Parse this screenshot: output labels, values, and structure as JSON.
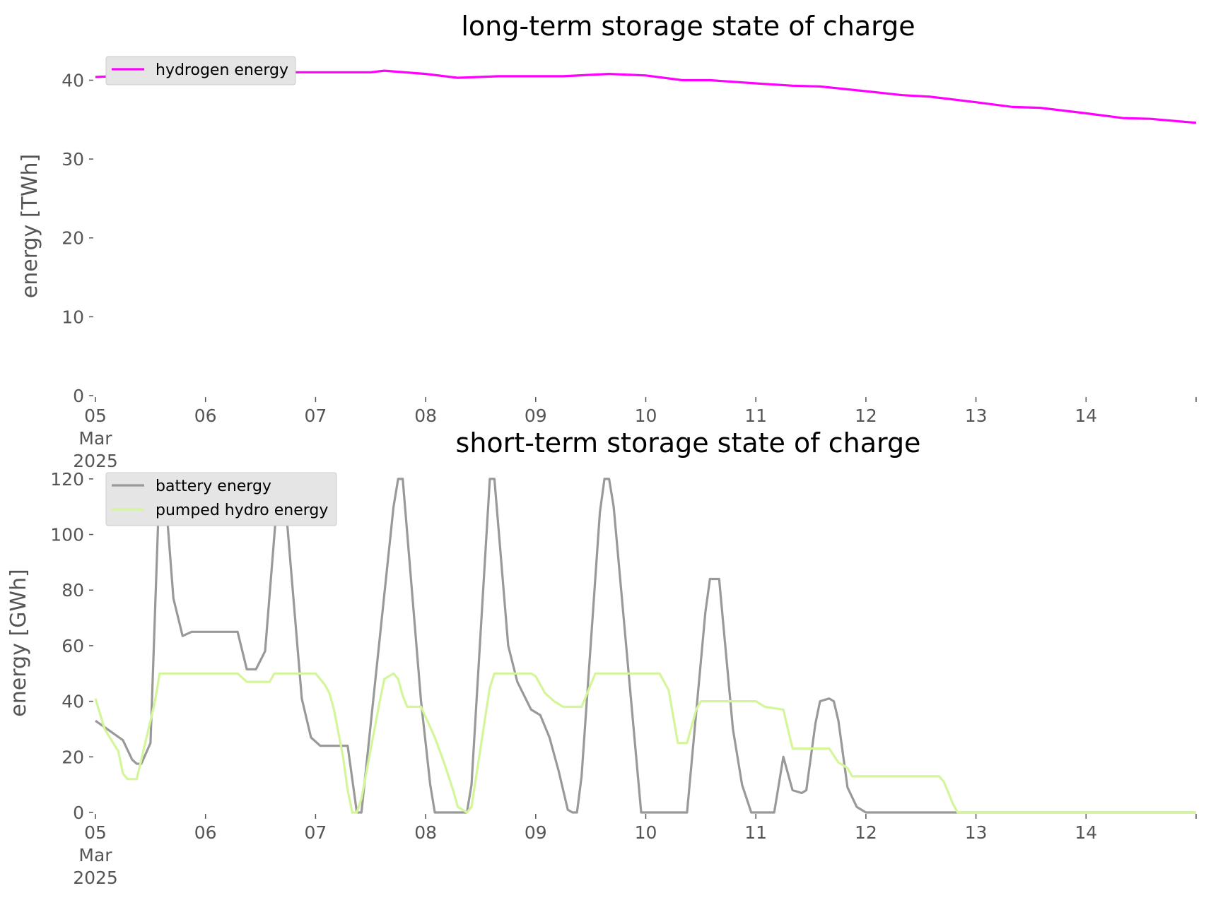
{
  "colors": {
    "hydrogen": "#ff00ff",
    "battery": "#999999",
    "pumped_hydro": "#d4f59a"
  },
  "chart_data": [
    {
      "type": "line",
      "title": "long-term storage state of charge",
      "ylabel": "energy [TWh]",
      "xlabel": "",
      "ylim": [
        0,
        43
      ],
      "yticks": [
        0,
        10,
        20,
        30,
        40
      ],
      "xlim": [
        "2025-03-05",
        "2025-03-15"
      ],
      "xtick_labels": [
        "05\nMar\n2025",
        "06",
        "07",
        "08",
        "09",
        "10",
        "11",
        "12",
        "13",
        "14"
      ],
      "legend_position": "top-left",
      "grid": false,
      "series": [
        {
          "name": "hydrogen energy",
          "color_key": "hydrogen",
          "points": [
            [
              "2025-03-05 00:00",
              40.4
            ],
            [
              "2025-03-05 12:00",
              40.7
            ],
            [
              "2025-03-06 00:00",
              40.9
            ],
            [
              "2025-03-06 12:00",
              41.0
            ],
            [
              "2025-03-07 00:00",
              41.0
            ],
            [
              "2025-03-07 12:00",
              41.0
            ],
            [
              "2025-03-07 15:00",
              41.2
            ],
            [
              "2025-03-08 00:00",
              40.8
            ],
            [
              "2025-03-08 07:00",
              40.3
            ],
            [
              "2025-03-08 16:00",
              40.5
            ],
            [
              "2025-03-09 06:00",
              40.5
            ],
            [
              "2025-03-09 16:00",
              40.8
            ],
            [
              "2025-03-10 00:00",
              40.6
            ],
            [
              "2025-03-10 08:00",
              40.0
            ],
            [
              "2025-03-10 14:00",
              40.0
            ],
            [
              "2025-03-11 00:00",
              39.6
            ],
            [
              "2025-03-11 08:00",
              39.3
            ],
            [
              "2025-03-11 14:00",
              39.2
            ],
            [
              "2025-03-12 00:00",
              38.6
            ],
            [
              "2025-03-12 08:00",
              38.1
            ],
            [
              "2025-03-12 14:00",
              37.9
            ],
            [
              "2025-03-13 00:00",
              37.2
            ],
            [
              "2025-03-13 08:00",
              36.6
            ],
            [
              "2025-03-13 14:00",
              36.5
            ],
            [
              "2025-03-14 00:00",
              35.8
            ],
            [
              "2025-03-14 08:00",
              35.2
            ],
            [
              "2025-03-14 14:00",
              35.1
            ],
            [
              "2025-03-15 00:00",
              34.6
            ]
          ]
        }
      ]
    },
    {
      "type": "line",
      "title": "short-term storage state of charge",
      "ylabel": "energy [GWh]",
      "xlabel": "",
      "ylim": [
        0,
        122
      ],
      "yticks": [
        0,
        20,
        40,
        60,
        80,
        100,
        120
      ],
      "xlim": [
        "2025-03-05",
        "2025-03-15"
      ],
      "xtick_labels": [
        "05\nMar\n2025",
        "06",
        "07",
        "08",
        "09",
        "10",
        "11",
        "12",
        "13",
        "14"
      ],
      "legend_position": "top-left",
      "grid": false,
      "series": [
        {
          "name": "battery energy",
          "color_key": "battery",
          "points": [
            [
              "2025-03-05 00:00",
              33
            ],
            [
              "2025-03-05 06:00",
              26
            ],
            [
              "2025-03-05 08:00",
              19
            ],
            [
              "2025-03-05 09:00",
              17.5
            ],
            [
              "2025-03-05 10:00",
              17.5
            ],
            [
              "2025-03-05 12:00",
              25
            ],
            [
              "2025-03-05 14:00",
              120
            ],
            [
              "2025-03-05 15:00",
              120
            ],
            [
              "2025-03-05 17:00",
              77
            ],
            [
              "2025-03-05 19:00",
              63.5
            ],
            [
              "2025-03-05 21:00",
              65
            ],
            [
              "2025-03-06 07:00",
              65
            ],
            [
              "2025-03-06 09:00",
              51.5
            ],
            [
              "2025-03-06 11:00",
              51.5
            ],
            [
              "2025-03-06 13:00",
              58
            ],
            [
              "2025-03-06 16:00",
              120
            ],
            [
              "2025-03-06 17:00",
              120
            ],
            [
              "2025-03-06 21:00",
              41
            ],
            [
              "2025-03-06 23:00",
              27
            ],
            [
              "2025-03-07 01:00",
              24
            ],
            [
              "2025-03-07 07:00",
              24
            ],
            [
              "2025-03-07 09:00",
              0
            ],
            [
              "2025-03-07 10:00",
              0
            ],
            [
              "2025-03-07 17:00",
              110
            ],
            [
              "2025-03-07 18:00",
              120
            ],
            [
              "2025-03-07 19:00",
              120
            ],
            [
              "2025-03-07 23:00",
              40
            ],
            [
              "2025-03-08 01:00",
              10
            ],
            [
              "2025-03-08 02:00",
              0
            ],
            [
              "2025-03-08 08:00",
              0
            ],
            [
              "2025-03-08 09:00",
              0
            ],
            [
              "2025-03-08 10:00",
              10
            ],
            [
              "2025-03-08 14:00",
              120
            ],
            [
              "2025-03-08 15:00",
              120
            ],
            [
              "2025-03-08 18:00",
              60
            ],
            [
              "2025-03-08 20:00",
              47
            ],
            [
              "2025-03-08 23:00",
              37
            ],
            [
              "2025-03-09 01:00",
              35
            ],
            [
              "2025-03-09 03:00",
              27
            ],
            [
              "2025-03-09 05:00",
              15
            ],
            [
              "2025-03-09 07:00",
              1
            ],
            [
              "2025-03-09 08:00",
              0
            ],
            [
              "2025-03-09 09:00",
              0
            ],
            [
              "2025-03-09 10:00",
              13
            ],
            [
              "2025-03-09 14:00",
              108
            ],
            [
              "2025-03-09 15:00",
              120
            ],
            [
              "2025-03-09 16:00",
              120
            ],
            [
              "2025-03-09 17:00",
              110
            ],
            [
              "2025-03-09 23:00",
              0
            ],
            [
              "2025-03-10 09:00",
              0
            ],
            [
              "2025-03-10 13:00",
              72
            ],
            [
              "2025-03-10 14:00",
              84
            ],
            [
              "2025-03-10 16:00",
              84
            ],
            [
              "2025-03-10 19:00",
              30
            ],
            [
              "2025-03-10 21:00",
              10
            ],
            [
              "2025-03-10 23:00",
              0
            ],
            [
              "2025-03-11 04:00",
              0
            ],
            [
              "2025-03-11 06:00",
              20
            ],
            [
              "2025-03-11 08:00",
              8
            ],
            [
              "2025-03-11 10:00",
              7
            ],
            [
              "2025-03-11 11:00",
              8
            ],
            [
              "2025-03-11 13:00",
              32
            ],
            [
              "2025-03-11 14:00",
              40
            ],
            [
              "2025-03-11 16:00",
              41
            ],
            [
              "2025-03-11 17:00",
              40
            ],
            [
              "2025-03-11 18:00",
              33
            ],
            [
              "2025-03-11 20:00",
              9
            ],
            [
              "2025-03-11 22:00",
              2
            ],
            [
              "2025-03-12 00:00",
              0
            ],
            [
              "2025-03-15 00:00",
              0
            ]
          ]
        },
        {
          "name": "pumped hydro energy",
          "color_key": "pumped_hydro",
          "points": [
            [
              "2025-03-05 00:00",
              41
            ],
            [
              "2025-03-05 02:00",
              30
            ],
            [
              "2025-03-05 05:00",
              22
            ],
            [
              "2025-03-05 06:00",
              14
            ],
            [
              "2025-03-05 07:00",
              12
            ],
            [
              "2025-03-05 09:00",
              12
            ],
            [
              "2025-03-05 13:00",
              40
            ],
            [
              "2025-03-05 14:00",
              50
            ],
            [
              "2025-03-06 07:00",
              50
            ],
            [
              "2025-03-06 09:00",
              47
            ],
            [
              "2025-03-06 11:00",
              47
            ],
            [
              "2025-03-06 14:00",
              47
            ],
            [
              "2025-03-06 15:00",
              50
            ],
            [
              "2025-03-07 00:00",
              50
            ],
            [
              "2025-03-07 02:00",
              46
            ],
            [
              "2025-03-07 03:00",
              43
            ],
            [
              "2025-03-07 04:00",
              37
            ],
            [
              "2025-03-07 06:00",
              20
            ],
            [
              "2025-03-07 07:00",
              8
            ],
            [
              "2025-03-07 08:00",
              0
            ],
            [
              "2025-03-07 09:00",
              0
            ],
            [
              "2025-03-07 10:00",
              5
            ],
            [
              "2025-03-07 14:00",
              40
            ],
            [
              "2025-03-07 15:00",
              48
            ],
            [
              "2025-03-07 17:00",
              50
            ],
            [
              "2025-03-07 18:00",
              48
            ],
            [
              "2025-03-07 19:00",
              42
            ],
            [
              "2025-03-07 20:00",
              38
            ],
            [
              "2025-03-07 23:00",
              38
            ],
            [
              "2025-03-08 02:00",
              27
            ],
            [
              "2025-03-08 04:00",
              18
            ],
            [
              "2025-03-08 06:00",
              8
            ],
            [
              "2025-03-08 07:00",
              2
            ],
            [
              "2025-03-08 09:00",
              0
            ],
            [
              "2025-03-08 10:00",
              2
            ],
            [
              "2025-03-08 14:00",
              45
            ],
            [
              "2025-03-08 15:00",
              50
            ],
            [
              "2025-03-08 23:00",
              50
            ],
            [
              "2025-03-09 00:00",
              49
            ],
            [
              "2025-03-09 02:00",
              43
            ],
            [
              "2025-03-09 04:00",
              40
            ],
            [
              "2025-03-09 06:00",
              38
            ],
            [
              "2025-03-09 10:00",
              38
            ],
            [
              "2025-03-09 11:00",
              42
            ],
            [
              "2025-03-09 13:00",
              50
            ],
            [
              "2025-03-10 03:00",
              50
            ],
            [
              "2025-03-10 05:00",
              44
            ],
            [
              "2025-03-10 07:00",
              25
            ],
            [
              "2025-03-10 09:00",
              25
            ],
            [
              "2025-03-10 11:00",
              37
            ],
            [
              "2025-03-10 12:00",
              40
            ],
            [
              "2025-03-10 22:00",
              40
            ],
            [
              "2025-03-11 00:00",
              40
            ],
            [
              "2025-03-11 02:00",
              38
            ],
            [
              "2025-03-11 06:00",
              37
            ],
            [
              "2025-03-11 07:00",
              30
            ],
            [
              "2025-03-11 08:00",
              23
            ],
            [
              "2025-03-11 16:00",
              23
            ],
            [
              "2025-03-11 18:00",
              18
            ],
            [
              "2025-03-11 20:00",
              16
            ],
            [
              "2025-03-11 21:00",
              13
            ],
            [
              "2025-03-12 16:00",
              13
            ],
            [
              "2025-03-12 17:00",
              11
            ],
            [
              "2025-03-12 19:00",
              3
            ],
            [
              "2025-03-12 20:00",
              0
            ],
            [
              "2025-03-15 00:00",
              0
            ]
          ]
        }
      ]
    }
  ]
}
